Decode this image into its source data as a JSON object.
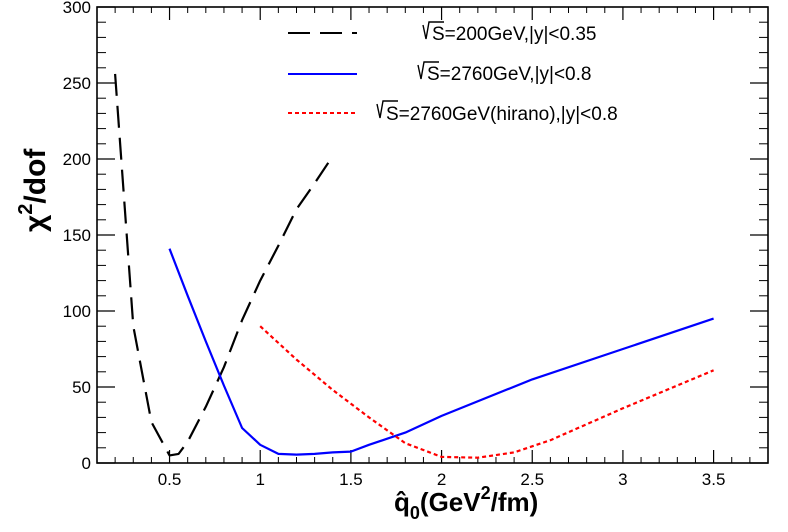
{
  "chart_data": {
    "type": "line",
    "xlabel": {
      "main": "q̂",
      "sub": "0",
      "pre_sup": "(GeV",
      "sup": "2",
      "post_sup": "/fm)"
    },
    "ylabel": {
      "main": "χ",
      "sup": "2",
      "rest": "/dof"
    },
    "xlim": [
      0.1,
      3.8
    ],
    "ylim": [
      0,
      300
    ],
    "x_ticks": [
      0.5,
      1,
      1.5,
      2,
      2.5,
      3,
      3.5
    ],
    "x_tick_labels": [
      "0.5",
      "1",
      "1.5",
      "2",
      "2.5",
      "3",
      "3.5"
    ],
    "y_ticks": [
      0,
      50,
      100,
      150,
      200,
      250,
      300
    ],
    "y_tick_labels": [
      "0",
      "50",
      "100",
      "150",
      "200",
      "250",
      "300"
    ],
    "grid": false,
    "legend_position": "top-center",
    "series": [
      {
        "name": "S=200GeV,|y|<0.35",
        "color": "#000000",
        "style": "long-dash",
        "x": [
          0.2,
          0.3,
          0.4,
          0.5,
          0.55,
          0.6,
          0.7,
          0.8,
          0.9,
          1.0,
          1.1,
          1.2,
          1.3,
          1.4
        ],
        "y": [
          256,
          90,
          27,
          5,
          6,
          14,
          37,
          63,
          94,
          120,
          143,
          167,
          184,
          202
        ]
      },
      {
        "name": "S=2760GeV,|y|<0.8",
        "color": "#0000ff",
        "style": "solid",
        "x": [
          0.5,
          0.6,
          0.7,
          0.8,
          0.9,
          1.0,
          1.1,
          1.2,
          1.3,
          1.4,
          1.5,
          1.6,
          1.7,
          1.8,
          2.0,
          2.5,
          3.0,
          3.5
        ],
        "y": [
          141,
          110,
          80,
          51,
          23,
          12,
          6,
          5.5,
          6,
          7,
          7.5,
          12,
          16,
          20,
          31,
          55,
          75,
          95
        ]
      },
      {
        "name": "S=2760GeV(hirano),|y|<0.8",
        "color": "#ff0000",
        "style": "dotted",
        "x": [
          1.0,
          1.2,
          1.4,
          1.6,
          1.8,
          2.0,
          2.2,
          2.4,
          2.6,
          3.0,
          3.5
        ],
        "y": [
          90,
          68,
          48,
          30,
          13,
          4,
          3.5,
          7,
          15,
          36,
          61
        ]
      }
    ]
  }
}
